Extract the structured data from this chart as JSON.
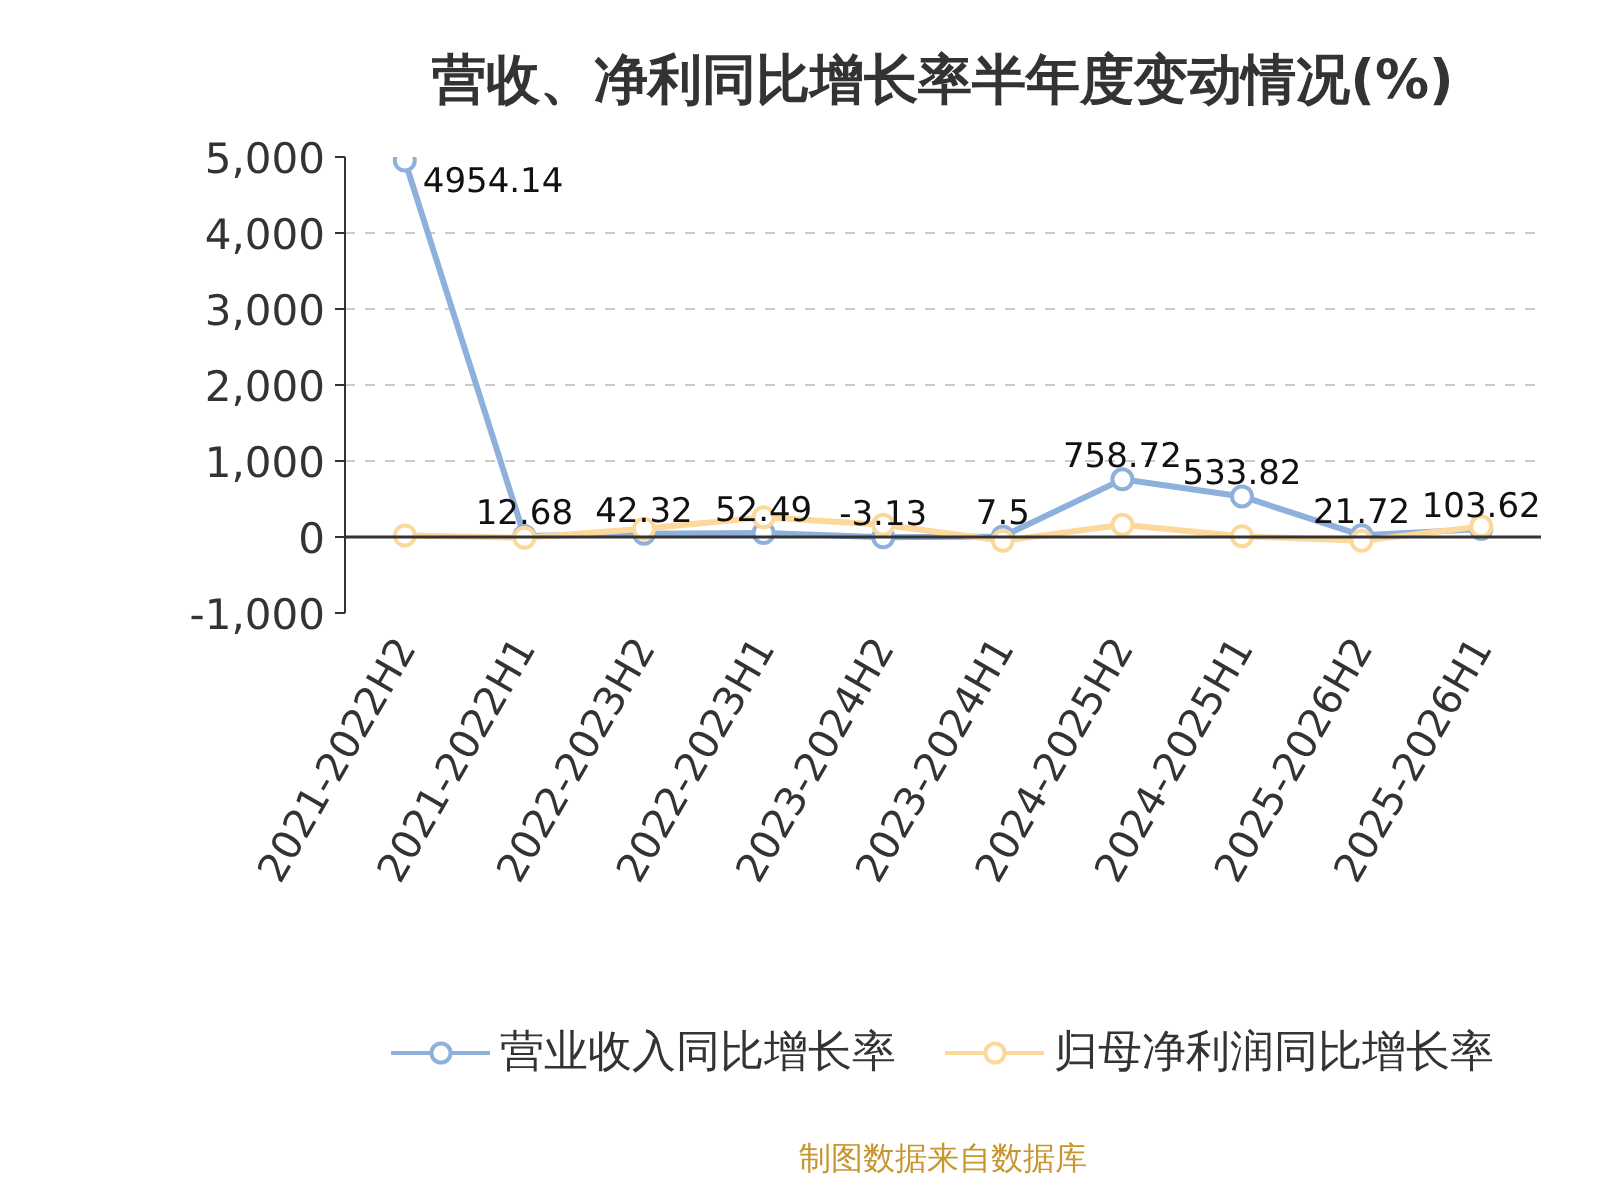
{
  "chart_data": {
    "type": "line",
    "title": "营收、净利同比增长率半年度变动情况(%)",
    "categories": [
      "2021-2022H2",
      "2021-2022H1",
      "2022-2023H2",
      "2022-2023H1",
      "2023-2024H2",
      "2023-2024H1",
      "2024-2025H2",
      "2024-2025H1",
      "2025-2026H2",
      "2025-2026H1"
    ],
    "series": [
      {
        "name": "营业收入同比增长率",
        "color": "#8eb0dc",
        "values": [
          4954.14,
          12.68,
          42.32,
          52.49,
          -3.13,
          7.5,
          758.72,
          533.82,
          21.72,
          103.62
        ],
        "value_labels": [
          "4954.14",
          "12.68",
          "42.32",
          "52.49",
          "-3.13",
          "7.5",
          "758.72",
          "533.82",
          "21.72",
          "103.62"
        ]
      },
      {
        "name": "归母净利润同比增长率",
        "color": "#fdd89b",
        "values": [
          20,
          -10,
          110,
          260,
          160,
          -50,
          160,
          10,
          -50,
          140
        ]
      }
    ],
    "ylim": [
      -1000,
      5000
    ],
    "yticks": [
      {
        "value": -1000,
        "label": "-1,000"
      },
      0,
      {
        "value": 1000,
        "label": "1,000"
      },
      {
        "value": 2000,
        "label": "2,000"
      },
      {
        "value": 3000,
        "label": "3,000"
      },
      {
        "value": 4000,
        "label": "4,000"
      },
      {
        "value": 5000,
        "label": "5,000"
      }
    ],
    "grid": "y",
    "legend": "bottom",
    "marker": "circle",
    "line_style": "solid",
    "annotations": [
      "制图数据来自数据库"
    ]
  }
}
